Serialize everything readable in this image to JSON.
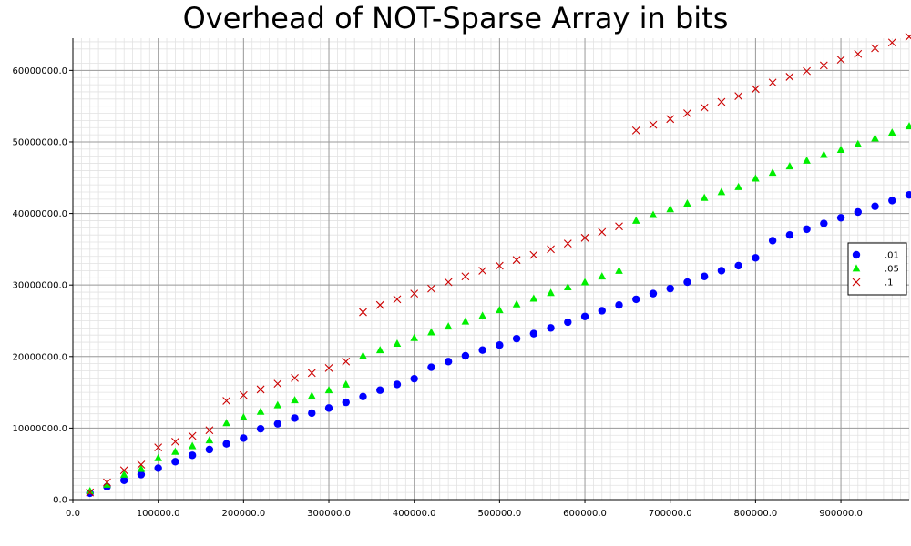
{
  "chart_data": {
    "type": "scatter",
    "title": "Overhead of NOT-Sparse Array in bits",
    "xlabel": "",
    "ylabel": "",
    "xlim": [
      0,
      980000
    ],
    "ylim": [
      0,
      64500000
    ],
    "x_ticks": [
      0,
      100000,
      200000,
      300000,
      400000,
      500000,
      600000,
      700000,
      800000,
      900000
    ],
    "x_tick_labels": [
      "0.0",
      "100000.0",
      "200000.0",
      "300000.0",
      "400000.0",
      "500000.0",
      "600000.0",
      "700000.0",
      "800000.0",
      "900000.0"
    ],
    "y_ticks": [
      0,
      10000000,
      20000000,
      30000000,
      40000000,
      50000000,
      60000000
    ],
    "y_tick_labels": [
      "0.0",
      "10000000.0",
      "20000000.0",
      "30000000.0",
      "40000000.0",
      "50000000.0",
      "60000000.0"
    ],
    "grid": true,
    "legend_position": "right",
    "series": [
      {
        "name": ".01",
        "marker": "circle",
        "color": "#0000ff",
        "x": [
          20000,
          40000,
          60000,
          80000,
          100000,
          120000,
          140000,
          160000,
          180000,
          200000,
          220000,
          240000,
          260000,
          280000,
          300000,
          320000,
          340000,
          360000,
          380000,
          400000,
          420000,
          440000,
          460000,
          480000,
          500000,
          520000,
          540000,
          560000,
          580000,
          600000,
          620000,
          640000,
          660000,
          680000,
          700000,
          720000,
          740000,
          760000,
          780000,
          800000,
          820000,
          840000,
          860000,
          880000,
          900000,
          920000,
          940000,
          960000,
          980000
        ],
        "y": [
          900000,
          1800000,
          2700000,
          3500000,
          4400000,
          5300000,
          6200000,
          7000000,
          7800000,
          8600000,
          9900000,
          10600000,
          11400000,
          12100000,
          12800000,
          13600000,
          14400000,
          15300000,
          16100000,
          16900000,
          18500000,
          19300000,
          20100000,
          20900000,
          21600000,
          22500000,
          23200000,
          24000000,
          24800000,
          25600000,
          26400000,
          27200000,
          28000000,
          28800000,
          29500000,
          30400000,
          31200000,
          32000000,
          32700000,
          33800000,
          36200000,
          37000000,
          37800000,
          38600000,
          39400000,
          40200000,
          41000000,
          41800000,
          42600000
        ]
      },
      {
        "name": ".05",
        "marker": "triangle",
        "color": "#00ee00",
        "x": [
          20000,
          40000,
          60000,
          80000,
          100000,
          120000,
          140000,
          160000,
          180000,
          200000,
          220000,
          240000,
          260000,
          280000,
          300000,
          320000,
          340000,
          360000,
          380000,
          400000,
          420000,
          440000,
          460000,
          480000,
          500000,
          520000,
          540000,
          560000,
          580000,
          600000,
          620000,
          640000,
          660000,
          680000,
          700000,
          720000,
          740000,
          760000,
          780000,
          800000,
          820000,
          840000,
          860000,
          880000,
          900000,
          920000,
          940000,
          960000,
          980000
        ],
        "y": [
          1200000,
          2100000,
          3500000,
          4300000,
          5800000,
          6700000,
          7500000,
          8300000,
          10700000,
          11500000,
          12300000,
          13200000,
          13900000,
          14500000,
          15300000,
          16100000,
          20100000,
          20900000,
          21800000,
          22600000,
          23400000,
          24200000,
          24900000,
          25700000,
          26500000,
          27300000,
          28100000,
          28900000,
          29700000,
          30400000,
          31200000,
          32000000,
          39000000,
          39800000,
          40600000,
          41400000,
          42200000,
          43000000,
          43700000,
          44900000,
          45700000,
          46600000,
          47400000,
          48200000,
          48900000,
          49700000,
          50500000,
          51300000,
          52200000
        ]
      },
      {
        "name": ".1",
        "marker": "x",
        "color": "#cc0000",
        "x": [
          20000,
          40000,
          60000,
          80000,
          100000,
          120000,
          140000,
          160000,
          180000,
          200000,
          220000,
          240000,
          260000,
          280000,
          300000,
          320000,
          340000,
          360000,
          380000,
          400000,
          420000,
          440000,
          460000,
          480000,
          500000,
          520000,
          540000,
          560000,
          580000,
          600000,
          620000,
          640000,
          660000,
          680000,
          700000,
          720000,
          740000,
          760000,
          780000,
          800000,
          820000,
          840000,
          860000,
          880000,
          900000,
          920000,
          940000,
          960000,
          980000
        ],
        "y": [
          1000000,
          2400000,
          4100000,
          4900000,
          7300000,
          8100000,
          8900000,
          9700000,
          13800000,
          14600000,
          15400000,
          16200000,
          17000000,
          17700000,
          18400000,
          19300000,
          26200000,
          27200000,
          28000000,
          28800000,
          29500000,
          30400000,
          31200000,
          32000000,
          32700000,
          33500000,
          34200000,
          35000000,
          35800000,
          36600000,
          37400000,
          38200000,
          51600000,
          52400000,
          53200000,
          54000000,
          54800000,
          55600000,
          56400000,
          57400000,
          58300000,
          59100000,
          59900000,
          60700000,
          61500000,
          62300000,
          63100000,
          63900000,
          64700000
        ]
      }
    ]
  }
}
